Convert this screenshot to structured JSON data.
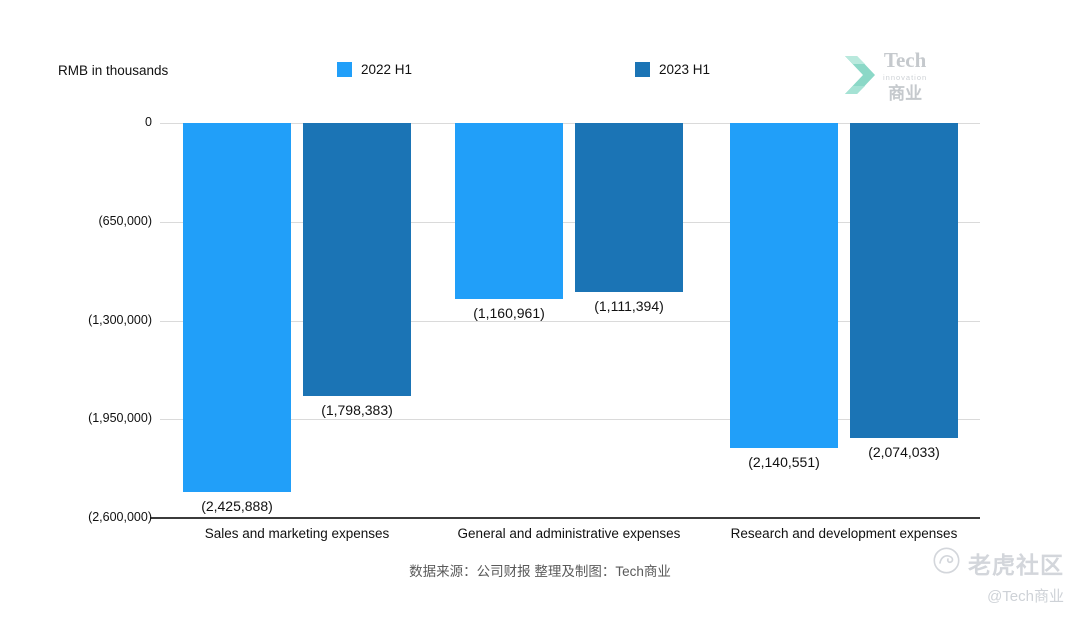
{
  "header": {
    "unit_label": "RMB in thousands",
    "logo": {
      "line1": "Tech",
      "line2": "innovation",
      "line3": "商业"
    }
  },
  "chart_data": {
    "type": "bar",
    "title": "",
    "unit": "RMB in thousands",
    "categories": [
      "Sales and marketing expenses",
      "General and administrative expenses",
      "Research and development expenses"
    ],
    "series": [
      {
        "name": "2022 H1",
        "color": "#219FF9",
        "values": [
          -2425888,
          -1160961,
          -2140551
        ],
        "labels": [
          "(2,425,888)",
          "(1,160,961)",
          "(2,140,551)"
        ]
      },
      {
        "name": "2023 H1",
        "color": "#1B74B5",
        "values": [
          -1798383,
          -1111394,
          -2074033
        ],
        "labels": [
          "(1,798,383)",
          "(1,111,394)",
          "(2,074,033)"
        ]
      }
    ],
    "y_ticks": [
      "0",
      "(650,000)",
      "(1,300,000)",
      "(1,950,000)",
      "(2,600,000)"
    ],
    "ylim": [
      -2600000,
      0
    ],
    "grid": "horizontal",
    "legend_position": "top"
  },
  "footer": {
    "source_text": "数据来源：公司财报 整理及制图：Tech商业"
  },
  "watermark": {
    "community": "老虎社区",
    "handle": "@Tech商业"
  }
}
